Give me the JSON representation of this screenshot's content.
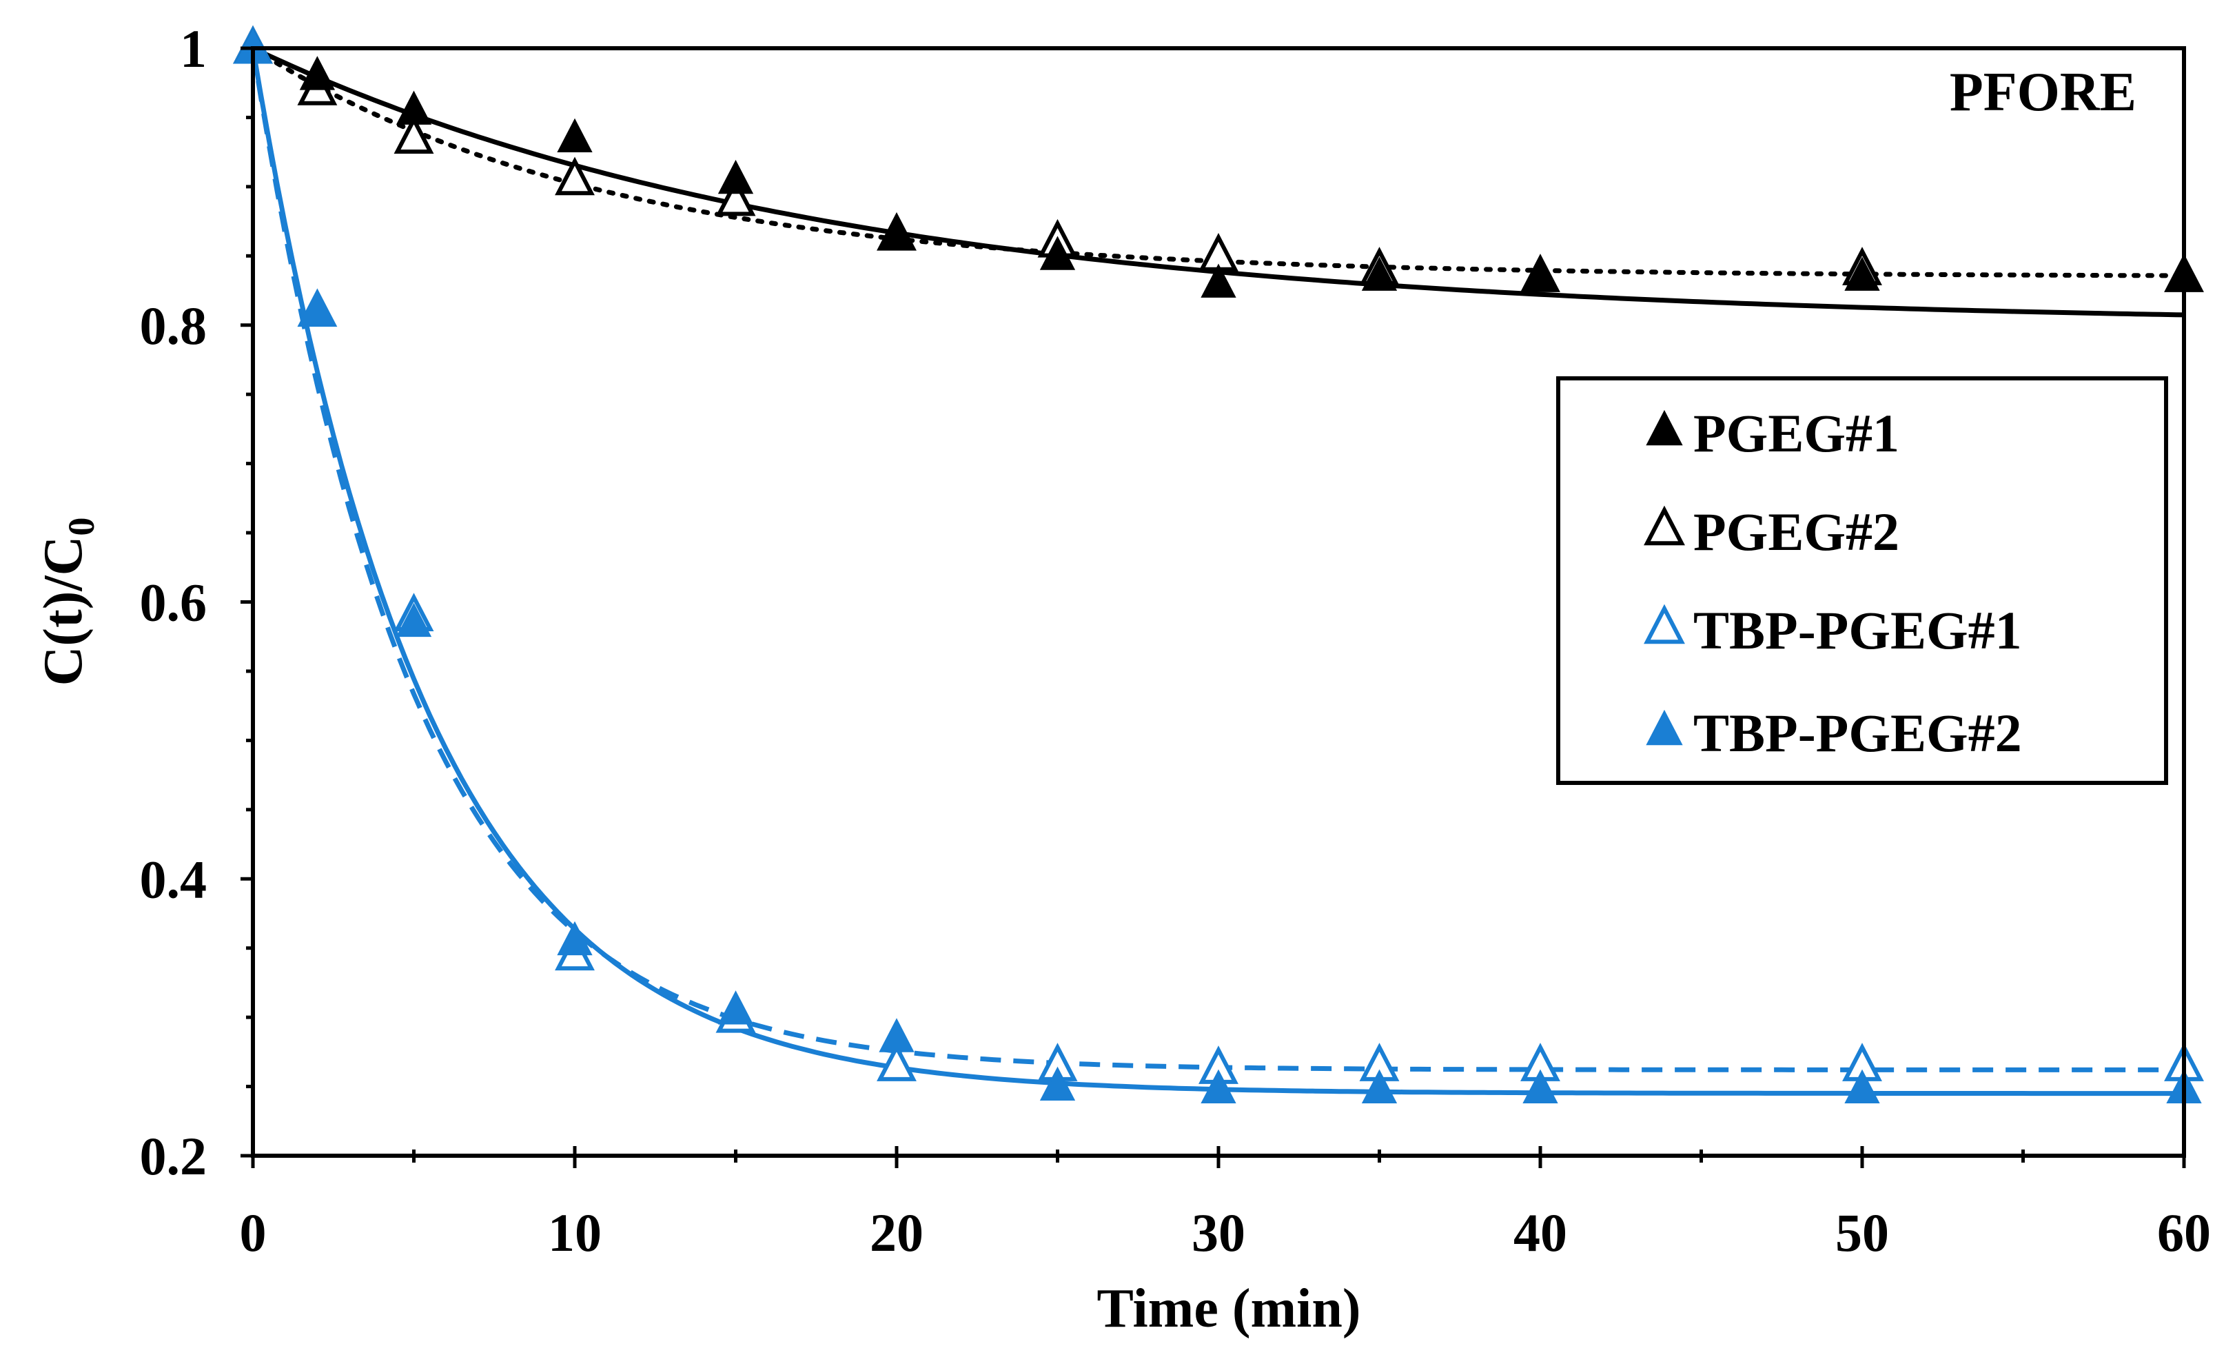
{
  "chart_data": {
    "type": "scatter",
    "title": "",
    "annotation": "PFORE",
    "xlabel": "Time (min)",
    "ylabel_main": "C(t)/C",
    "ylabel_sub": "0",
    "xlim": [
      0,
      60
    ],
    "ylim": [
      0.2,
      1.0
    ],
    "x_ticks": [
      0,
      10,
      20,
      30,
      40,
      50,
      60
    ],
    "x_tick_labels": [
      "0",
      "10",
      "20",
      "30",
      "40",
      "50",
      "60"
    ],
    "y_ticks": [
      0.2,
      0.4,
      0.6,
      0.8,
      1.0
    ],
    "y_tick_labels": [
      "0.2",
      "0.4",
      "0.6",
      "0.8",
      "1"
    ],
    "grid": false,
    "legend_position": "right-middle",
    "series": [
      {
        "name": "PGEG#1",
        "marker": "filled-triangle",
        "color": "#000000",
        "x": [
          0,
          2,
          5,
          10,
          15,
          20,
          25,
          30,
          35,
          40,
          50,
          60
        ],
        "y": [
          1.0,
          0.98,
          0.955,
          0.935,
          0.905,
          0.865,
          0.85,
          0.83,
          0.835,
          0.835,
          0.835,
          0.835
        ]
      },
      {
        "name": "PGEG#2",
        "marker": "open-triangle",
        "color": "#000000",
        "x": [
          0,
          2,
          5,
          10,
          15,
          20,
          25,
          30,
          35,
          40,
          50,
          60
        ],
        "y": [
          1.0,
          0.97,
          0.935,
          0.905,
          0.89,
          0.865,
          0.86,
          0.85,
          0.84,
          0.835,
          0.84,
          0.835
        ]
      },
      {
        "name": "TBP-PGEG#1",
        "marker": "open-triangle",
        "color": "#1a7fd4",
        "x": [
          0,
          2,
          5,
          10,
          15,
          20,
          25,
          30,
          35,
          40,
          50,
          60
        ],
        "y": [
          1.0,
          0.81,
          0.59,
          0.345,
          0.3,
          0.265,
          0.265,
          0.263,
          0.265,
          0.265,
          0.265,
          0.265
        ]
      },
      {
        "name": "TBP-PGEG#2",
        "marker": "filled-triangle",
        "color": "#1a7fd4",
        "x": [
          0,
          2,
          5,
          10,
          15,
          20,
          25,
          30,
          35,
          40,
          50,
          60
        ],
        "y": [
          1.0,
          0.81,
          0.585,
          0.355,
          0.305,
          0.285,
          0.25,
          0.248,
          0.248,
          0.248,
          0.248,
          0.248
        ]
      }
    ],
    "fits": [
      {
        "name": "PGEG#1 fit",
        "style": "solid",
        "color": "#000000",
        "c_eq": 0.8,
        "k": 0.055
      },
      {
        "name": "PGEG#2 fit",
        "style": "dotted",
        "color": "#000000",
        "c_eq": 0.835,
        "k": 0.09
      },
      {
        "name": "TBP-PGEG#1 fit",
        "style": "dashed",
        "color": "#1a7fd4",
        "c_eq": 0.262,
        "k": 0.2
      },
      {
        "name": "TBP-PGEG#2 fit",
        "style": "solid",
        "color": "#1a7fd4",
        "c_eq": 0.245,
        "k": 0.185
      }
    ]
  }
}
